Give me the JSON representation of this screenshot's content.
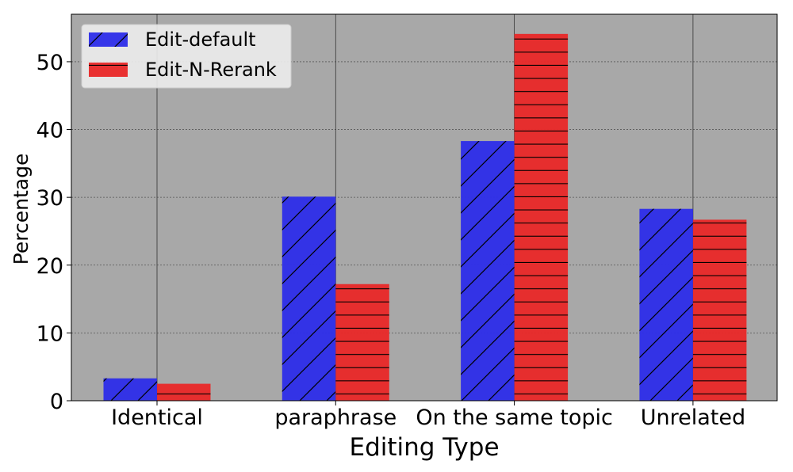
{
  "chart_data": {
    "type": "bar",
    "title": "",
    "xlabel": "Editing Type",
    "ylabel": "Percentage",
    "categories": [
      "Identical",
      "paraphrase",
      "On the same topic",
      "Unrelated"
    ],
    "series": [
      {
        "name": "Edit-default",
        "values": [
          3.3,
          30.1,
          38.3,
          28.3
        ],
        "color": "#2f2fe8",
        "hatch": "diagonal"
      },
      {
        "name": "Edit-N-Rerank",
        "values": [
          2.5,
          17.2,
          54.1,
          26.7
        ],
        "color": "#e82a2a",
        "hatch": "horizontal"
      }
    ],
    "ylim": [
      0,
      57
    ],
    "yticks": [
      0,
      10,
      20,
      30,
      40,
      50
    ],
    "grid": true,
    "legend_position": "top-left",
    "background_color": "#a8a8a8"
  }
}
